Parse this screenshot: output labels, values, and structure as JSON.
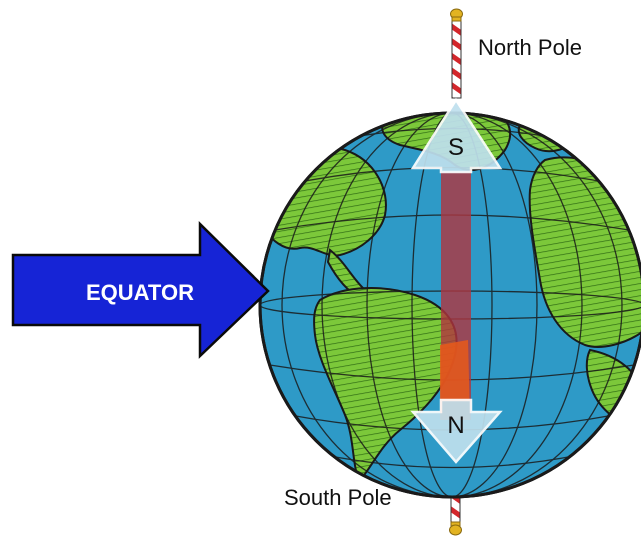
{
  "labels": {
    "north_pole": "North Pole",
    "south_pole": "South Pole",
    "equator": "EQUATOR",
    "magnet_top": "S",
    "magnet_bottom": "N"
  },
  "colors": {
    "ocean": "#2e9ac7",
    "land": "#7cc83a",
    "outline": "#1a1a1a",
    "equator_arrow": "#1624d6",
    "magnet_bar": "#b0343f",
    "magnet_arrow": "#bfe0ee",
    "pole_stripe": "#d3262b",
    "pole_cap": "#e2b321",
    "orange_patch": "#e8591a"
  }
}
